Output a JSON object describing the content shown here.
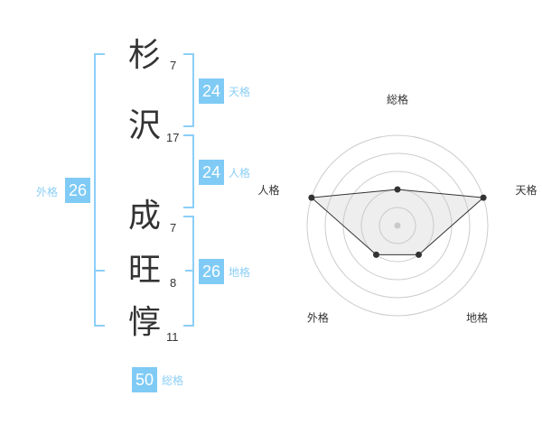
{
  "name_chars": [
    {
      "char": "杉",
      "strokes": "7"
    },
    {
      "char": "沢",
      "strokes": "17"
    },
    {
      "char": "成",
      "strokes": "7"
    },
    {
      "char": "旺",
      "strokes": "8"
    },
    {
      "char": "惇",
      "strokes": "11"
    }
  ],
  "kaku": {
    "tenkaku": {
      "label": "天格",
      "value": "24"
    },
    "jinkaku": {
      "label": "人格",
      "value": "24"
    },
    "chikaku": {
      "label": "地格",
      "value": "26"
    },
    "gaikaku": {
      "label": "外格",
      "value": "26"
    },
    "soukaku": {
      "label": "総格",
      "value": "50"
    }
  },
  "colors": {
    "accent": "#7fcbf5",
    "bracket": "#8ccff7"
  },
  "chart_data": {
    "type": "radar",
    "axes": [
      "総格",
      "天格",
      "地格",
      "外格",
      "人格"
    ],
    "values": [
      2,
      5,
      2,
      2,
      5
    ],
    "range": [
      0,
      5
    ],
    "rings": 5
  }
}
